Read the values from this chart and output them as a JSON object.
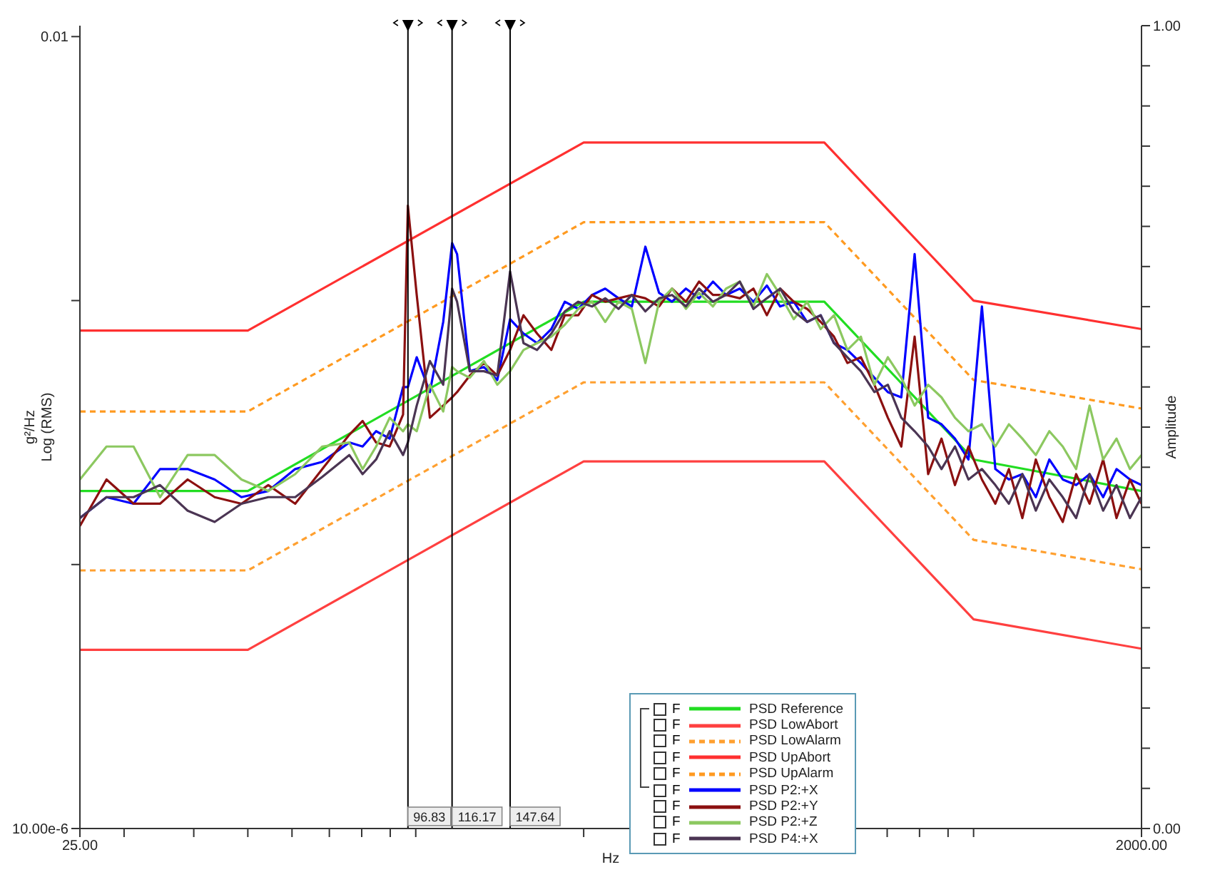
{
  "chart_data": {
    "type": "line",
    "xlabel": "Hz",
    "ylabel": "Log (RMS)",
    "y2label": "Amplitude",
    "annotations": [
      "g²/Hz",
      "F",
      "F",
      "F",
      "F",
      "F",
      "F",
      "F",
      "F",
      "F"
    ],
    "x": [
      25,
      27.9,
      31.2,
      34.8,
      39,
      43.6,
      48.7,
      54.4,
      60.8,
      68,
      76,
      80.3,
      84.9,
      89.8,
      94.9,
      96.8,
      100.4,
      106,
      112,
      116.2,
      118.6,
      125,
      132.5,
      140,
      147.6,
      156,
      165,
      175,
      185,
      195.6,
      207,
      218.6,
      231,
      244,
      258,
      273,
      288,
      305,
      322,
      341,
      360,
      381,
      403,
      426,
      450,
      476,
      503,
      532,
      562,
      594,
      628,
      664,
      702,
      742,
      784,
      829,
      876,
      926,
      979,
      1035,
      1094,
      1157,
      1223,
      1293,
      1367,
      1445,
      1527,
      1614,
      1707,
      1804,
      1907,
      2000
    ],
    "series": [
      {
        "name": "PSD Reference",
        "color": "#22dd22",
        "x": [
          25,
          50,
          200,
          540,
          1000,
          2000
        ],
        "values": [
          0.00019,
          0.00019,
          0.00099,
          0.00099,
          0.00025,
          0.00019
        ]
      },
      {
        "name": "PSD LowAbort",
        "color": "#ff4040",
        "x": [
          25,
          50,
          200,
          540,
          1000,
          2000
        ],
        "values": [
          4.75e-05,
          4.75e-05,
          0.000246,
          0.000246,
          6.2e-05,
          4.8e-05
        ]
      },
      {
        "name": "PSD LowAlarm",
        "color": "#ffa030",
        "line_style": "dashed",
        "x": [
          25,
          50,
          200,
          540,
          1000,
          2000
        ],
        "values": [
          9.5e-05,
          9.5e-05,
          0.00049,
          0.00049,
          0.000124,
          9.6e-05
        ]
      },
      {
        "name": "PSD UpAbort",
        "color": "#ff3030",
        "x": [
          25,
          50,
          200,
          540,
          1000,
          2000
        ],
        "values": [
          0.00077,
          0.00077,
          0.00397,
          0.00397,
          0.001,
          0.00078
        ]
      },
      {
        "name": "PSD UpAlarm",
        "color": "#ff9a20",
        "line_style": "dashed",
        "x": [
          25,
          50,
          200,
          540,
          1000,
          2000
        ],
        "values": [
          0.00038,
          0.00038,
          0.00198,
          0.00198,
          0.0005,
          0.00039
        ]
      },
      {
        "name": "PSD P2:+X",
        "color": "#0000ff",
        "values": [
          0.00015,
          0.00018,
          0.00017,
          0.00023,
          0.00023,
          0.00021,
          0.00018,
          0.00019,
          0.00023,
          0.000245,
          0.00029,
          0.00028,
          0.00032,
          0.0003,
          0.00047,
          0.00047,
          0.00061,
          0.00045,
          0.00083,
          0.00165,
          0.0015,
          0.00054,
          0.00056,
          0.0005,
          0.00085,
          0.00075,
          0.00069,
          0.00078,
          0.00099,
          0.00093,
          0.00105,
          0.00111,
          0.00102,
          0.00095,
          0.0016,
          0.00107,
          0.00099,
          0.00111,
          0.00102,
          0.00118,
          0.00105,
          0.00111,
          0.00099,
          0.00114,
          0.00095,
          0.00099,
          0.00083,
          0.00088,
          0.00069,
          0.00065,
          0.00058,
          0.00051,
          0.00045,
          0.00043,
          0.0015,
          0.00036,
          0.00034,
          0.0003,
          0.00025,
          0.00095,
          0.00023,
          0.00021,
          0.00022,
          0.00018,
          0.00025,
          0.00021,
          0.0002,
          0.00022,
          0.00018,
          0.00023,
          0.00021,
          0.0002
        ]
      },
      {
        "name": "PSD P2:+Y",
        "color": "#8b1010",
        "values": [
          0.00014,
          0.00021,
          0.00017,
          0.00017,
          0.00021,
          0.00018,
          0.00017,
          0.0002,
          0.00017,
          0.00023,
          0.00031,
          0.00035,
          0.00029,
          0.00028,
          0.00037,
          0.00229,
          0.00105,
          0.00036,
          0.0004,
          0.00043,
          0.00045,
          0.00052,
          0.00058,
          0.00052,
          0.00065,
          0.00088,
          0.00075,
          0.00065,
          0.00088,
          0.00088,
          0.00105,
          0.00099,
          0.00102,
          0.00105,
          0.00102,
          0.00095,
          0.00111,
          0.00099,
          0.00118,
          0.00105,
          0.00105,
          0.00102,
          0.00111,
          0.00088,
          0.00111,
          0.00099,
          0.00093,
          0.00083,
          0.00073,
          0.00058,
          0.00061,
          0.00048,
          0.00036,
          0.00028,
          0.00073,
          0.00022,
          0.0003,
          0.0002,
          0.00028,
          0.00021,
          0.00017,
          0.00023,
          0.00015,
          0.00025,
          0.00018,
          0.000145,
          0.00022,
          0.00017,
          0.00025,
          0.00015,
          0.00021,
          0.00017
        ]
      },
      {
        "name": "PSD P2:+Z",
        "color": "#8cc860",
        "values": [
          0.00021,
          0.00028,
          0.00028,
          0.00018,
          0.00026,
          0.00026,
          0.00021,
          0.00019,
          0.00022,
          0.00028,
          0.00029,
          0.00023,
          0.00028,
          0.00036,
          0.00032,
          0.00034,
          0.00032,
          0.00048,
          0.00038,
          0.00056,
          0.00054,
          0.00051,
          0.00059,
          0.00048,
          0.00054,
          0.00065,
          0.00069,
          0.00073,
          0.00081,
          0.00093,
          0.00099,
          0.00083,
          0.00099,
          0.00093,
          0.00058,
          0.00099,
          0.00111,
          0.00093,
          0.00107,
          0.00095,
          0.00111,
          0.00118,
          0.00095,
          0.00126,
          0.00105,
          0.00085,
          0.00099,
          0.00078,
          0.00088,
          0.00065,
          0.00073,
          0.00048,
          0.00061,
          0.00051,
          0.0004,
          0.00048,
          0.00043,
          0.00036,
          0.00032,
          0.00034,
          0.00028,
          0.00034,
          0.0003,
          0.00026,
          0.00032,
          0.00028,
          0.00023,
          0.0004,
          0.00025,
          0.0003,
          0.00023,
          0.00026
        ]
      },
      {
        "name": "PSD P4:+X",
        "color": "#4b3553",
        "values": [
          0.00015,
          0.00018,
          0.00018,
          0.0002,
          0.00016,
          0.000145,
          0.00017,
          0.00018,
          0.00018,
          0.000215,
          0.00026,
          0.00022,
          0.00025,
          0.00032,
          0.00026,
          0.00029,
          0.0004,
          0.00059,
          0.00048,
          0.00111,
          0.00099,
          0.00054,
          0.00054,
          0.00052,
          0.00129,
          0.00069,
          0.00065,
          0.00075,
          0.00091,
          0.00099,
          0.00095,
          0.00102,
          0.00093,
          0.00105,
          0.00091,
          0.00102,
          0.00105,
          0.00095,
          0.00111,
          0.00099,
          0.00105,
          0.00118,
          0.00093,
          0.00102,
          0.00111,
          0.00091,
          0.00083,
          0.00088,
          0.00069,
          0.00061,
          0.00054,
          0.00045,
          0.00048,
          0.00036,
          0.00032,
          0.00028,
          0.00023,
          0.00028,
          0.00021,
          0.00023,
          0.0002,
          0.00017,
          0.00022,
          0.00016,
          0.00021,
          0.00018,
          0.00015,
          0.00022,
          0.00016,
          0.0002,
          0.00015,
          0.00018
        ]
      }
    ],
    "xlim": [
      25,
      2000
    ],
    "ylim": [
      1e-05,
      0.011
    ],
    "y2lim": [
      0,
      1
    ],
    "xticks": [
      {
        "value": 25,
        "label": "25.00"
      },
      {
        "value": 30,
        "label": null
      },
      {
        "value": 40,
        "label": null
      },
      {
        "value": 50,
        "label": null
      },
      {
        "value": 60,
        "label": null
      },
      {
        "value": 70,
        "label": null
      },
      {
        "value": 80,
        "label": null
      },
      {
        "value": 90,
        "label": null
      },
      {
        "value": 100,
        "label": null
      },
      {
        "value": 200,
        "label": null
      },
      {
        "value": 300,
        "label": null
      },
      {
        "value": 400,
        "label": null
      },
      {
        "value": 500,
        "label": null
      },
      {
        "value": 600,
        "label": null
      },
      {
        "value": 700,
        "label": null
      },
      {
        "value": 800,
        "label": null
      },
      {
        "value": 900,
        "label": null
      },
      {
        "value": 1000,
        "label": null
      },
      {
        "value": 2000,
        "label": "2000.00"
      }
    ],
    "yticks": [
      {
        "value": 0.01,
        "label": "0.01"
      },
      {
        "value": 0.001,
        "label": null
      },
      {
        "value": 0.0001,
        "label": null
      },
      {
        "value": 1e-05,
        "label": "10.00e-6"
      }
    ],
    "y2ticks": [
      {
        "value": 0,
        "label": "0.00"
      },
      {
        "value": 0.05,
        "label": null
      },
      {
        "value": 0.1,
        "label": null
      },
      {
        "value": 0.15,
        "label": null
      },
      {
        "value": 0.2,
        "label": null
      },
      {
        "value": 0.25,
        "label": null
      },
      {
        "value": 0.3,
        "label": null
      },
      {
        "value": 0.35,
        "label": null
      },
      {
        "value": 0.4,
        "label": null
      },
      {
        "value": 0.45,
        "label": null
      },
      {
        "value": 0.5,
        "label": null
      },
      {
        "value": 0.55,
        "label": null
      },
      {
        "value": 0.6,
        "label": null
      },
      {
        "value": 0.65,
        "label": null
      },
      {
        "value": 0.7,
        "label": null
      },
      {
        "value": 0.75,
        "label": null
      },
      {
        "value": 0.8,
        "label": null
      },
      {
        "value": 0.85,
        "label": null
      },
      {
        "value": 0.9,
        "label": null
      },
      {
        "value": 0.95,
        "label": null
      },
      {
        "value": 1,
        "label": "1.00"
      }
    ],
    "log": "xy",
    "legend": "bottom",
    "ref_lines": [
      {
        "axis": "x",
        "value": 96.83,
        "label": "96.83",
        "color": "#000000"
      },
      {
        "axis": "x",
        "value": 116.17,
        "label": "116.17",
        "color": "#000000"
      },
      {
        "axis": "x",
        "value": 147.64,
        "label": "147.64",
        "color": "#000000"
      }
    ]
  }
}
